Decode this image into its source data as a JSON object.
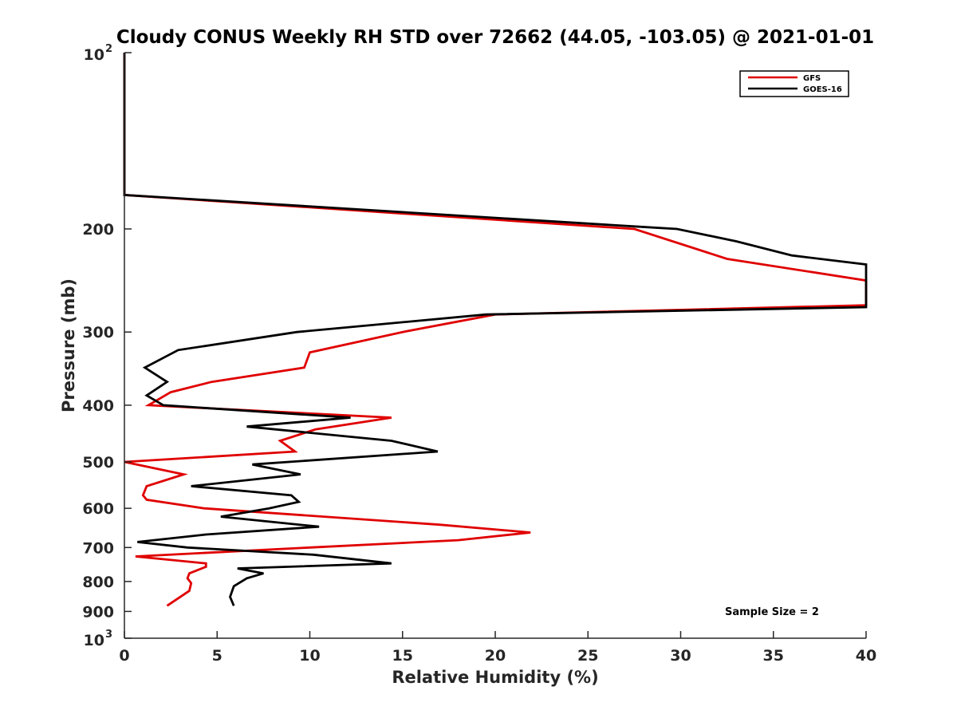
{
  "chart_data": {
    "type": "line",
    "title": "Cloudy CONUS Weekly RH STD over 72662 (44.05, -103.05) @ 2021-01-01",
    "xlabel": "Relative Humidity (%)",
    "ylabel": "Pressure (mb)",
    "xlim": [
      0,
      40
    ],
    "ylim": [
      100,
      1000
    ],
    "y_scale": "log",
    "y_reversed": true,
    "x_ticks": [
      0,
      5,
      10,
      15,
      20,
      25,
      30,
      35,
      40
    ],
    "y_ticks": [
      {
        "value": 100,
        "base": "10",
        "exp": "2"
      },
      {
        "value": 200,
        "label": "200"
      },
      {
        "value": 300,
        "label": "300"
      },
      {
        "value": 400,
        "label": "400"
      },
      {
        "value": 500,
        "label": "500"
      },
      {
        "value": 600,
        "label": "600"
      },
      {
        "value": 700,
        "label": "700"
      },
      {
        "value": 800,
        "label": "800"
      },
      {
        "value": 900,
        "label": "900"
      },
      {
        "value": 1000,
        "base": "10",
        "exp": "3"
      }
    ],
    "grid": false,
    "legend_position": "top-right",
    "series": [
      {
        "name": "GFS",
        "color": "#e00000",
        "points": [
          [
            0,
            100
          ],
          [
            0,
            175
          ],
          [
            27.5,
            200
          ],
          [
            32.5,
            225
          ],
          [
            40,
            245
          ],
          [
            40,
            270
          ],
          [
            20,
            280
          ],
          [
            15,
            300
          ],
          [
            10,
            325
          ],
          [
            9.7,
            345
          ],
          [
            4.7,
            365
          ],
          [
            2.5,
            380
          ],
          [
            1.3,
            400
          ],
          [
            14.4,
            420
          ],
          [
            10.3,
            440
          ],
          [
            8.4,
            460
          ],
          [
            9.2,
            480
          ],
          [
            0,
            500
          ],
          [
            3.2,
            525
          ],
          [
            1.2,
            550
          ],
          [
            1.0,
            570
          ],
          [
            1.2,
            580
          ],
          [
            4.3,
            600
          ],
          [
            17,
            640
          ],
          [
            21.9,
            660
          ],
          [
            18,
            680
          ],
          [
            10,
            700
          ],
          [
            0.6,
            725
          ],
          [
            4.4,
            745
          ],
          [
            4.4,
            755
          ],
          [
            3.5,
            775
          ],
          [
            3.4,
            790
          ],
          [
            3.6,
            805
          ],
          [
            3.5,
            830
          ],
          [
            2.3,
            880
          ]
        ]
      },
      {
        "name": "GOES-16",
        "color": "#000000",
        "points": [
          [
            0,
            100
          ],
          [
            0,
            175
          ],
          [
            27.5,
            198
          ],
          [
            29.8,
            200
          ],
          [
            33,
            210
          ],
          [
            36,
            222
          ],
          [
            40,
            230
          ],
          [
            40,
            272
          ],
          [
            19.5,
            280
          ],
          [
            9.3,
            300
          ],
          [
            2.9,
            322
          ],
          [
            1.1,
            345
          ],
          [
            2.3,
            365
          ],
          [
            1.2,
            385
          ],
          [
            2.1,
            400
          ],
          [
            12.2,
            420
          ],
          [
            6.6,
            435
          ],
          [
            14.4,
            460
          ],
          [
            16.9,
            480
          ],
          [
            6.9,
            505
          ],
          [
            9.5,
            525
          ],
          [
            3.6,
            550
          ],
          [
            9.0,
            570
          ],
          [
            9.4,
            585
          ],
          [
            7.8,
            600
          ],
          [
            5.2,
            620
          ],
          [
            10.5,
            645
          ],
          [
            4.4,
            665
          ],
          [
            0.7,
            685
          ],
          [
            3.4,
            700
          ],
          [
            10.2,
            720
          ],
          [
            14.4,
            745
          ],
          [
            6.1,
            760
          ],
          [
            7.5,
            775
          ],
          [
            6.6,
            790
          ],
          [
            5.9,
            815
          ],
          [
            5.7,
            850
          ],
          [
            5.9,
            880
          ]
        ]
      }
    ],
    "annotation": "Sample Size = 2"
  },
  "legend": {
    "entries": [
      {
        "label": "GFS",
        "color": "#e00000"
      },
      {
        "label": "GOES-16",
        "color": "#000000"
      }
    ]
  }
}
